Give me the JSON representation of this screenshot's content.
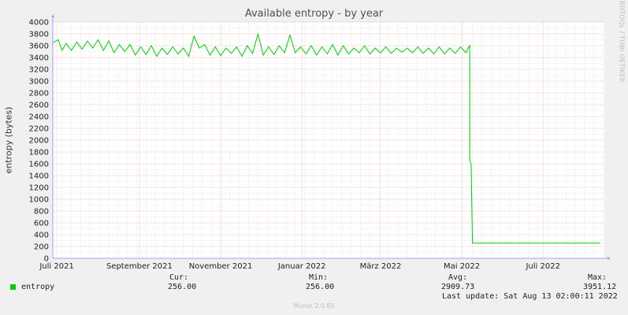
{
  "chart_data": {
    "type": "line",
    "title": "Available entropy - by year",
    "ylabel": "entropy (bytes)",
    "ylim": [
      0,
      4000
    ],
    "yticks": [
      0,
      200,
      400,
      600,
      800,
      1000,
      1200,
      1400,
      1600,
      1800,
      2000,
      2200,
      2400,
      2600,
      2800,
      3000,
      3200,
      3400,
      3600,
      3800,
      4000
    ],
    "xlim": [
      "2021-06-28",
      "2022-08-16"
    ],
    "xticks": [
      {
        "date": "2021-07-01",
        "label": "Juli 2021"
      },
      {
        "date": "2021-09-01",
        "label": "September 2021"
      },
      {
        "date": "2021-11-01",
        "label": "November 2021"
      },
      {
        "date": "2022-01-01",
        "label": "Januar 2022"
      },
      {
        "date": "2022-03-01",
        "label": "März 2022"
      },
      {
        "date": "2022-05-01",
        "label": "Mai 2022"
      },
      {
        "date": "2022-07-01",
        "label": "Juli 2022"
      }
    ],
    "series": [
      {
        "name": "entropy",
        "color": "#00cc00",
        "points": [
          [
            "2021-06-28",
            3650
          ],
          [
            "2021-07-02",
            3700
          ],
          [
            "2021-07-05",
            3520
          ],
          [
            "2021-07-08",
            3640
          ],
          [
            "2021-07-12",
            3520
          ],
          [
            "2021-07-16",
            3660
          ],
          [
            "2021-07-20",
            3540
          ],
          [
            "2021-07-24",
            3680
          ],
          [
            "2021-07-28",
            3560
          ],
          [
            "2021-08-01",
            3700
          ],
          [
            "2021-08-05",
            3520
          ],
          [
            "2021-08-09",
            3680
          ],
          [
            "2021-08-13",
            3480
          ],
          [
            "2021-08-17",
            3620
          ],
          [
            "2021-08-21",
            3500
          ],
          [
            "2021-08-25",
            3620
          ],
          [
            "2021-08-29",
            3440
          ],
          [
            "2021-09-02",
            3580
          ],
          [
            "2021-09-06",
            3450
          ],
          [
            "2021-09-10",
            3600
          ],
          [
            "2021-09-14",
            3420
          ],
          [
            "2021-09-18",
            3560
          ],
          [
            "2021-09-22",
            3450
          ],
          [
            "2021-09-26",
            3580
          ],
          [
            "2021-09-30",
            3460
          ],
          [
            "2021-10-04",
            3560
          ],
          [
            "2021-10-08",
            3420
          ],
          [
            "2021-10-12",
            3760
          ],
          [
            "2021-10-16",
            3560
          ],
          [
            "2021-10-20",
            3620
          ],
          [
            "2021-10-24",
            3440
          ],
          [
            "2021-10-28",
            3580
          ],
          [
            "2021-11-01",
            3430
          ],
          [
            "2021-11-05",
            3560
          ],
          [
            "2021-11-09",
            3470
          ],
          [
            "2021-11-13",
            3580
          ],
          [
            "2021-11-17",
            3420
          ],
          [
            "2021-11-21",
            3600
          ],
          [
            "2021-11-25",
            3470
          ],
          [
            "2021-11-29",
            3800
          ],
          [
            "2021-12-03",
            3440
          ],
          [
            "2021-12-07",
            3580
          ],
          [
            "2021-12-11",
            3450
          ],
          [
            "2021-12-15",
            3600
          ],
          [
            "2021-12-19",
            3480
          ],
          [
            "2021-12-23",
            3780
          ],
          [
            "2021-12-27",
            3480
          ],
          [
            "2021-12-31",
            3580
          ],
          [
            "2022-01-04",
            3460
          ],
          [
            "2022-01-08",
            3600
          ],
          [
            "2022-01-12",
            3440
          ],
          [
            "2022-01-16",
            3580
          ],
          [
            "2022-01-20",
            3460
          ],
          [
            "2022-01-24",
            3620
          ],
          [
            "2022-01-28",
            3440
          ],
          [
            "2022-02-01",
            3600
          ],
          [
            "2022-02-05",
            3460
          ],
          [
            "2022-02-09",
            3560
          ],
          [
            "2022-02-13",
            3480
          ],
          [
            "2022-02-17",
            3600
          ],
          [
            "2022-02-21",
            3460
          ],
          [
            "2022-02-25",
            3560
          ],
          [
            "2022-03-01",
            3480
          ],
          [
            "2022-03-05",
            3580
          ],
          [
            "2022-03-09",
            3470
          ],
          [
            "2022-03-13",
            3560
          ],
          [
            "2022-03-17",
            3490
          ],
          [
            "2022-03-21",
            3560
          ],
          [
            "2022-03-25",
            3480
          ],
          [
            "2022-03-29",
            3580
          ],
          [
            "2022-04-02",
            3470
          ],
          [
            "2022-04-06",
            3560
          ],
          [
            "2022-04-10",
            3460
          ],
          [
            "2022-04-14",
            3580
          ],
          [
            "2022-04-18",
            3460
          ],
          [
            "2022-04-22",
            3560
          ],
          [
            "2022-04-26",
            3470
          ],
          [
            "2022-04-30",
            3580
          ],
          [
            "2022-05-04",
            3480
          ],
          [
            "2022-05-07",
            3610
          ],
          [
            "2022-05-07",
            1660
          ],
          [
            "2022-05-08",
            1600
          ],
          [
            "2022-05-09",
            256
          ],
          [
            "2022-08-13",
            256
          ]
        ]
      }
    ]
  },
  "legend": {
    "label": "entropy",
    "cur_label": "Cur:",
    "cur_value": "256.00",
    "min_label": "Min:",
    "min_value": "256.00",
    "avg_label": "Avg:",
    "avg_value": "2909.73",
    "max_label": "Max:",
    "max_value": "3951.12",
    "last_update": "Last update: Sat Aug 13 02:00:11 2022"
  },
  "watermark": "RRDTOOL / TOBI OETIKER",
  "footer": "Munin 2.0.65",
  "colors": {
    "series": "#00cc00",
    "major_grid": "#e8a0a0",
    "minor_grid": "#d4d4d4",
    "plot_bg": "#ffffff",
    "page_bg": "#f0f0f0"
  }
}
